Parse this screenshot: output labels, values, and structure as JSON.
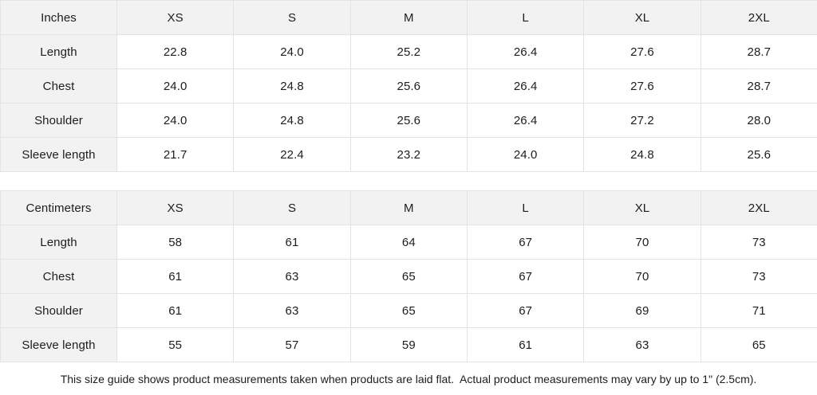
{
  "chart_data": [
    {
      "type": "table",
      "title": "Inches",
      "columns": [
        "Inches",
        "XS",
        "S",
        "M",
        "L",
        "XL",
        "2XL"
      ],
      "rows": [
        {
          "label": "Length",
          "values": [
            "22.8",
            "24.0",
            "25.2",
            "26.4",
            "27.6",
            "28.7"
          ]
        },
        {
          "label": "Chest",
          "values": [
            "24.0",
            "24.8",
            "25.6",
            "26.4",
            "27.6",
            "28.7"
          ]
        },
        {
          "label": "Shoulder",
          "values": [
            "24.0",
            "24.8",
            "25.6",
            "26.4",
            "27.2",
            "28.0"
          ]
        },
        {
          "label": "Sleeve length",
          "values": [
            "21.7",
            "22.4",
            "23.2",
            "24.0",
            "24.8",
            "25.6"
          ]
        }
      ]
    },
    {
      "type": "table",
      "title": "Centimeters",
      "columns": [
        "Centimeters",
        "XS",
        "S",
        "M",
        "L",
        "XL",
        "2XL"
      ],
      "rows": [
        {
          "label": "Length",
          "values": [
            "58",
            "61",
            "64",
            "67",
            "70",
            "73"
          ]
        },
        {
          "label": "Chest",
          "values": [
            "61",
            "63",
            "65",
            "67",
            "70",
            "73"
          ]
        },
        {
          "label": "Shoulder",
          "values": [
            "61",
            "63",
            "65",
            "67",
            "69",
            "71"
          ]
        },
        {
          "label": "Sleeve length",
          "values": [
            "55",
            "57",
            "59",
            "61",
            "63",
            "65"
          ]
        }
      ]
    }
  ],
  "footer": {
    "note": "This size guide shows product measurements taken when products are laid flat.  Actual product measurements may vary by up to 1\" (2.5cm)."
  },
  "colors": {
    "header_bg": "#f2f2f2",
    "border": "#e3e3e3",
    "text": "#1d1d1f",
    "background": "#ffffff"
  }
}
